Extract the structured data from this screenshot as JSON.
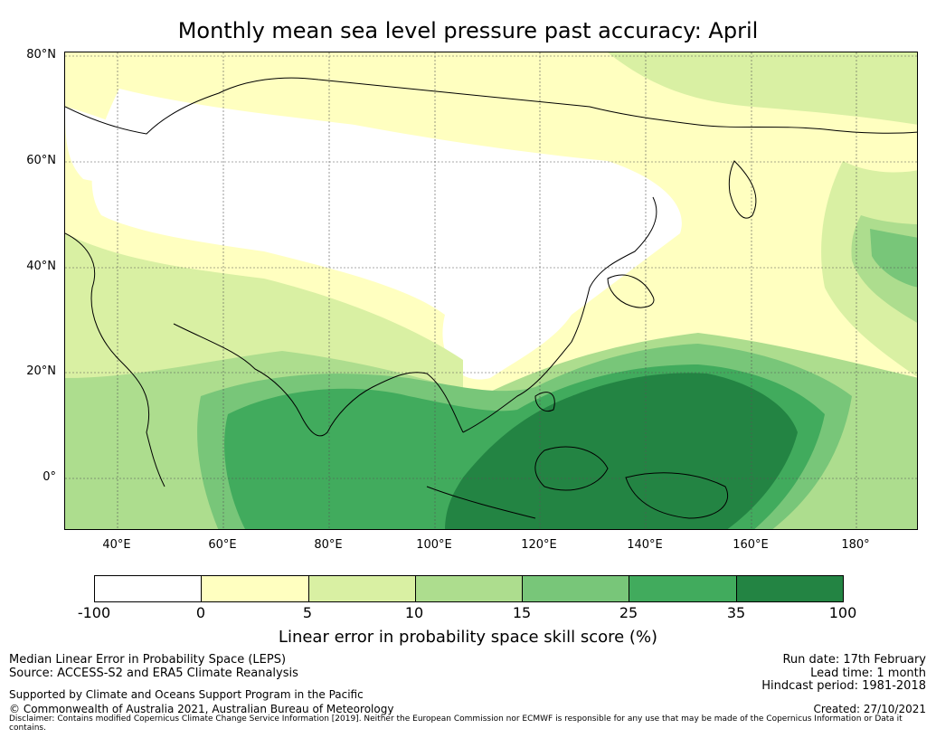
{
  "title": "Monthly mean sea level pressure past accuracy: April",
  "map": {
    "lat_labels": [
      "80°N",
      "60°N",
      "40°N",
      "20°N",
      "0°"
    ],
    "lat_values": [
      80,
      60,
      40,
      20,
      0
    ],
    "lon_labels": [
      "40°E",
      "60°E",
      "80°E",
      "100°E",
      "120°E",
      "140°E",
      "160°E",
      "180°"
    ],
    "lon_values": [
      40,
      60,
      80,
      100,
      120,
      140,
      160,
      180
    ],
    "extent": {
      "lon_min": 30,
      "lon_max": 192,
      "lat_min": -10,
      "lat_max": 81
    },
    "gridlines": true
  },
  "colorbar": {
    "ticks": [
      "-100",
      "0",
      "5",
      "10",
      "15",
      "25",
      "35",
      "100"
    ],
    "colors": [
      "#ffffff",
      "#ffffc0",
      "#d9f0a3",
      "#addd8e",
      "#78c679",
      "#41ab5d",
      "#238443"
    ],
    "label": "Linear error in probability space skill score (%)"
  },
  "footer": {
    "left_line1": "Median Linear Error in Probability Space (LEPS)",
    "left_line2": "Source: ACCESS-S2 and ERA5 Climate Reanalysis",
    "left_line3": "Supported by Climate and Oceans Support Program in the Pacific",
    "left_line4": "© Commonwealth of Australia 2021, Australian Bureau of Meteorology",
    "right_line1": "Run date: 17th February",
    "right_line2": "Lead time: 1 month",
    "right_line3": "Hindcast period: 1981-2018",
    "right_line4": "Created: 27/10/2021",
    "disclaimer": "Disclaimer: Contains modified Copernicus Climate Change Service Information [2019]. Neither the European Commission nor ECMWF is responsible for any use that may be made of the Copernicus Information or Data it contains."
  }
}
